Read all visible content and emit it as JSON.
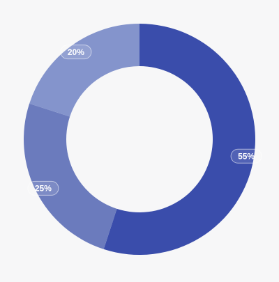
{
  "chart_data": {
    "type": "donut",
    "values": [
      55,
      25,
      20
    ],
    "value_labels": [
      "55%",
      "25%",
      "20%"
    ],
    "colors": [
      "#3a4dab",
      "#6b7bbd",
      "#8494cc"
    ]
  }
}
